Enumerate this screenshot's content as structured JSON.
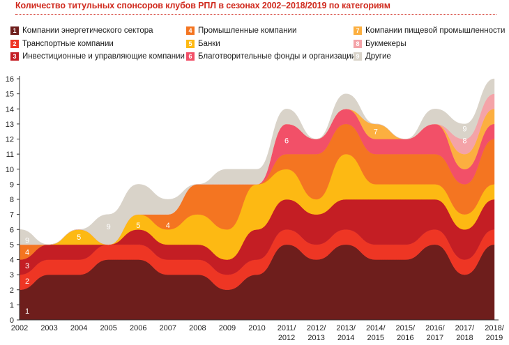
{
  "title": "Количество титульных спонсоров клубов РПЛ в сезонах 2002–2018/2019 по категориям",
  "legend": [
    {
      "num": "1",
      "label": "Компании энергетического сектора",
      "color": "#6e1e1c"
    },
    {
      "num": "2",
      "label": "Транспортные компании",
      "color": "#ee3624"
    },
    {
      "num": "3",
      "label": "Инвестиционные и управляющие компании",
      "color": "#c41e24"
    },
    {
      "num": "4",
      "label": "Промышленные компании",
      "color": "#f47521"
    },
    {
      "num": "5",
      "label": "Банки",
      "color": "#fdb913"
    },
    {
      "num": "6",
      "label": "Благотворительные фонды и организации",
      "color": "#f25068"
    },
    {
      "num": "7",
      "label": "Компании пищевой промышленности",
      "color": "#fcaf40"
    },
    {
      "num": "8",
      "label": "Букмекеры",
      "color": "#f4a3a8"
    },
    {
      "num": "9",
      "label": "Другие",
      "color": "#d9d3c9"
    }
  ],
  "chart_data": {
    "type": "area",
    "title": "Количество титульных спонсоров клубов РПЛ в сезонах 2002–2018/2019 по категориям",
    "x": [
      "2002",
      "2003",
      "2004",
      "2005",
      "2006",
      "2007",
      "2008",
      "2009",
      "2010",
      "2011/2012",
      "2012/2013",
      "2013/2014",
      "2014/2015",
      "2015/2016",
      "2016/2017",
      "2017/2018",
      "2018/2019"
    ],
    "x_tick_labels": [
      {
        "line1": "2002",
        "line2": ""
      },
      {
        "line1": "2003",
        "line2": ""
      },
      {
        "line1": "2004",
        "line2": ""
      },
      {
        "line1": "2005",
        "line2": ""
      },
      {
        "line1": "2006",
        "line2": ""
      },
      {
        "line1": "2007",
        "line2": ""
      },
      {
        "line1": "2008",
        "line2": ""
      },
      {
        "line1": "2009",
        "line2": ""
      },
      {
        "line1": "2010",
        "line2": ""
      },
      {
        "line1": "2011/",
        "line2": "2012"
      },
      {
        "line1": "2012/",
        "line2": "2013"
      },
      {
        "line1": "2013/",
        "line2": "2014"
      },
      {
        "line1": "2014/",
        "line2": "2015"
      },
      {
        "line1": "2015/",
        "line2": "2016"
      },
      {
        "line1": "2016/",
        "line2": "2017"
      },
      {
        "line1": "2017/",
        "line2": "2018"
      },
      {
        "line1": "2018/",
        "line2": "2019"
      }
    ],
    "series": [
      {
        "name": "Компании энергетического сектора",
        "color": "#6e1e1c",
        "values": [
          2,
          3,
          3,
          4,
          4,
          3,
          3,
          2,
          3,
          5,
          4,
          5,
          4,
          4,
          5,
          3,
          5
        ]
      },
      {
        "name": "Транспортные компании",
        "color": "#ee3624",
        "values": [
          1,
          1,
          1,
          1,
          1,
          1,
          1,
          1,
          1,
          1,
          1,
          1,
          1,
          1,
          1,
          1,
          1
        ]
      },
      {
        "name": "Инвестиционные и управляющие компании",
        "color": "#c41e24",
        "values": [
          1,
          1,
          1,
          0,
          1,
          1,
          1,
          1,
          2,
          2,
          2,
          2,
          3,
          3,
          2,
          2,
          2
        ]
      },
      {
        "name": "Промышленные компании",
        "color": "#f47521",
        "values": [
          1,
          0,
          0,
          0,
          0,
          0,
          0,
          0,
          0,
          0,
          0,
          0,
          0,
          0,
          0,
          0,
          0
        ]
      },
      {
        "name": "Банки",
        "color": "#fdb913",
        "values": [
          0,
          0,
          1,
          0,
          1,
          1,
          2,
          2,
          3,
          2,
          1,
          3,
          1,
          1,
          1,
          1,
          1
        ]
      },
      {
        "name": "Промышленные компании",
        "color": "#f47521",
        "values": [
          0,
          0,
          0,
          0,
          0,
          1,
          2,
          3,
          0,
          1,
          3,
          2,
          2,
          2,
          2,
          2,
          3
        ]
      },
      {
        "name": "Благотворительные фонды и организации",
        "color": "#f25068",
        "values": [
          0,
          0,
          0,
          0,
          0,
          0,
          0,
          0,
          0,
          2,
          1,
          1,
          1,
          1,
          2,
          1,
          1
        ]
      },
      {
        "name": "Компании пищевой промышленности",
        "color": "#fcaf40",
        "values": [
          0,
          0,
          0,
          0,
          0,
          0,
          0,
          0,
          0,
          0,
          0,
          0,
          1,
          0,
          0,
          1,
          1
        ]
      },
      {
        "name": "Букмекеры",
        "color": "#f4a3a8",
        "values": [
          0,
          0,
          0,
          0,
          0,
          0,
          0,
          0,
          0,
          0,
          0,
          0,
          0,
          0,
          0,
          1,
          1
        ]
      },
      {
        "name": "Другие",
        "color": "#d9d3c9",
        "values": [
          1,
          0,
          0,
          2,
          2,
          1,
          0,
          1,
          1,
          1,
          0,
          1,
          0,
          0,
          1,
          1,
          1
        ]
      }
    ],
    "ylim": [
      0,
      16
    ],
    "y_ticks": [
      "0",
      "1",
      "2",
      "3",
      "4",
      "5",
      "6",
      "7",
      "8",
      "9",
      "10",
      "11",
      "12",
      "13",
      "14",
      "15",
      "16"
    ],
    "grid": false,
    "legend": "top",
    "annotations": [
      {
        "text": "1",
        "x": "2002",
        "y": 0.6
      },
      {
        "text": "2",
        "x": "2002",
        "y": 2.6
      },
      {
        "text": "3",
        "x": "2002",
        "y": 3.6
      },
      {
        "text": "4",
        "x": "2002",
        "y": 4.5
      },
      {
        "text": "9",
        "x": "2002",
        "y": 5.3
      },
      {
        "text": "5",
        "x": "2004",
        "y": 5.5
      },
      {
        "text": "9",
        "x": "2005",
        "y": 6.2
      },
      {
        "text": "5",
        "x": "2006",
        "y": 6.3
      },
      {
        "text": "4",
        "x": "2007",
        "y": 6.3
      },
      {
        "text": "6",
        "x": "2011/2012",
        "y": 11.9
      },
      {
        "text": "7",
        "x": "2014/2015",
        "y": 12.5
      },
      {
        "text": "8",
        "x": "2017/2018",
        "y": 11.9
      },
      {
        "text": "9",
        "x": "2017/2018",
        "y": 12.7
      }
    ]
  }
}
